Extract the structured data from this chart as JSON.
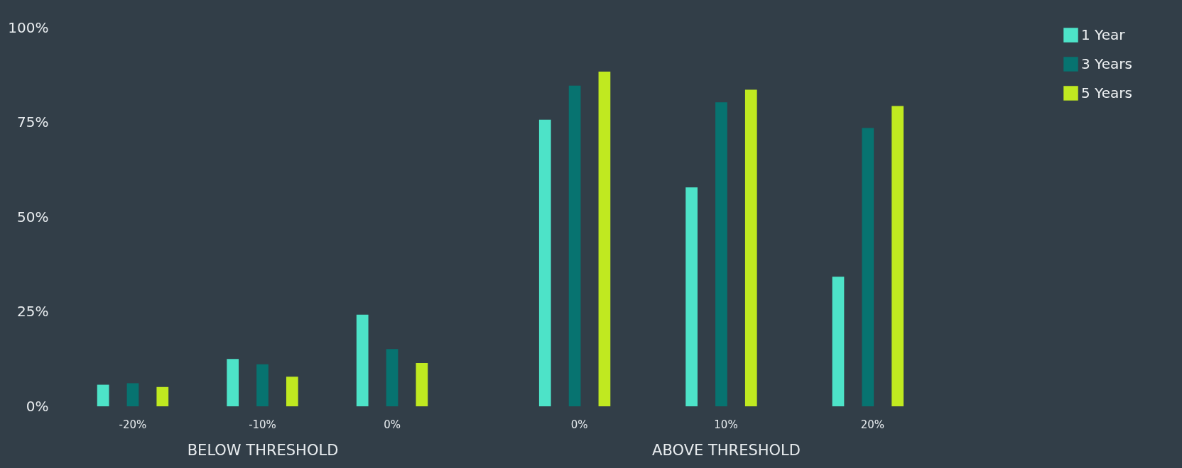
{
  "chart_data": [
    {
      "type": "bar",
      "xlabel": "BELOW THRESHOLD",
      "categories": [
        "-20%",
        "-10%",
        "0%"
      ],
      "series": [
        {
          "color": "#4de3c8",
          "values": [
            5.7,
            12.5,
            24.2
          ]
        },
        {
          "color": "#077370",
          "values": [
            6.1,
            11.1,
            15.1
          ]
        },
        {
          "color": "#c0e920",
          "values": [
            5.1,
            7.8,
            11.4
          ]
        }
      ],
      "ylim": [
        0,
        100
      ],
      "yticks": [
        {
          "value": 0,
          "label": "0%"
        },
        {
          "value": 25,
          "label": "25%"
        },
        {
          "value": 50,
          "label": "50%"
        },
        {
          "value": 75,
          "label": "75%"
        },
        {
          "value": 100,
          "label": "100%"
        }
      ],
      "grid": false
    },
    {
      "type": "bar",
      "xlabel": "ABOVE THRESHOLD",
      "categories": [
        "0%",
        "10%",
        "20%"
      ],
      "series": [
        {
          "name": "1 Year",
          "color": "#4de3c8",
          "values": [
            75.7,
            57.8,
            34.2
          ]
        },
        {
          "name": "3 Years",
          "color": "#077370",
          "values": [
            84.7,
            80.3,
            73.5
          ]
        },
        {
          "name": "5 Years",
          "color": "#c0e920",
          "values": [
            88.4,
            83.6,
            79.3
          ]
        }
      ],
      "ylim": [
        0,
        100
      ],
      "grid": false,
      "tick_labels": "x",
      "legend": "top right"
    }
  ]
}
